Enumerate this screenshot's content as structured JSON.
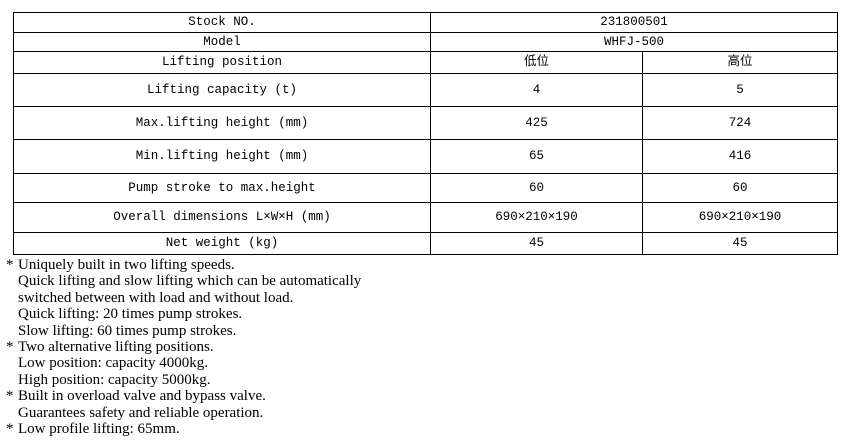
{
  "marker": "*",
  "table": {
    "rows": [
      {
        "label": "Stock NO.",
        "value": "231800501"
      },
      {
        "label": "Model",
        "value": "WHFJ-500"
      },
      {
        "label": "Lifting position",
        "low": "低位",
        "high": "高位"
      },
      {
        "label": "Lifting capacity (t)",
        "low": "4",
        "high": "5"
      },
      {
        "label": "Max.lifting height (mm)",
        "low": "425",
        "high": "724"
      },
      {
        "label": "Min.lifting height (mm)",
        "low": "65",
        "high": "416"
      },
      {
        "label": "Pump stroke to max.height",
        "low": "60",
        "high": "60"
      },
      {
        "label": "Overall dimensions L×W×H (mm)",
        "low": "690×210×190",
        "high": "690×210×190"
      },
      {
        "label": "Net weight (kg)",
        "low": "45",
        "high": "45"
      }
    ]
  },
  "notes": [
    {
      "lines": [
        "Uniquely built in two lifting speeds.",
        "Quick lifting and slow lifting which can be automatically",
        "switched between with load and without load.",
        "Quick lifting: 20 times pump strokes.",
        "Slow lifting: 60 times pump strokes."
      ]
    },
    {
      "lines": [
        "Two alternative lifting positions.",
        "Low position: capacity 4000kg.",
        "High position: capacity 5000kg."
      ]
    },
    {
      "lines": [
        "Built in overload valve and bypass valve.",
        "Guarantees safety and reliable operation."
      ]
    },
    {
      "lines": [
        "Low profile lifting: 65mm."
      ]
    }
  ]
}
